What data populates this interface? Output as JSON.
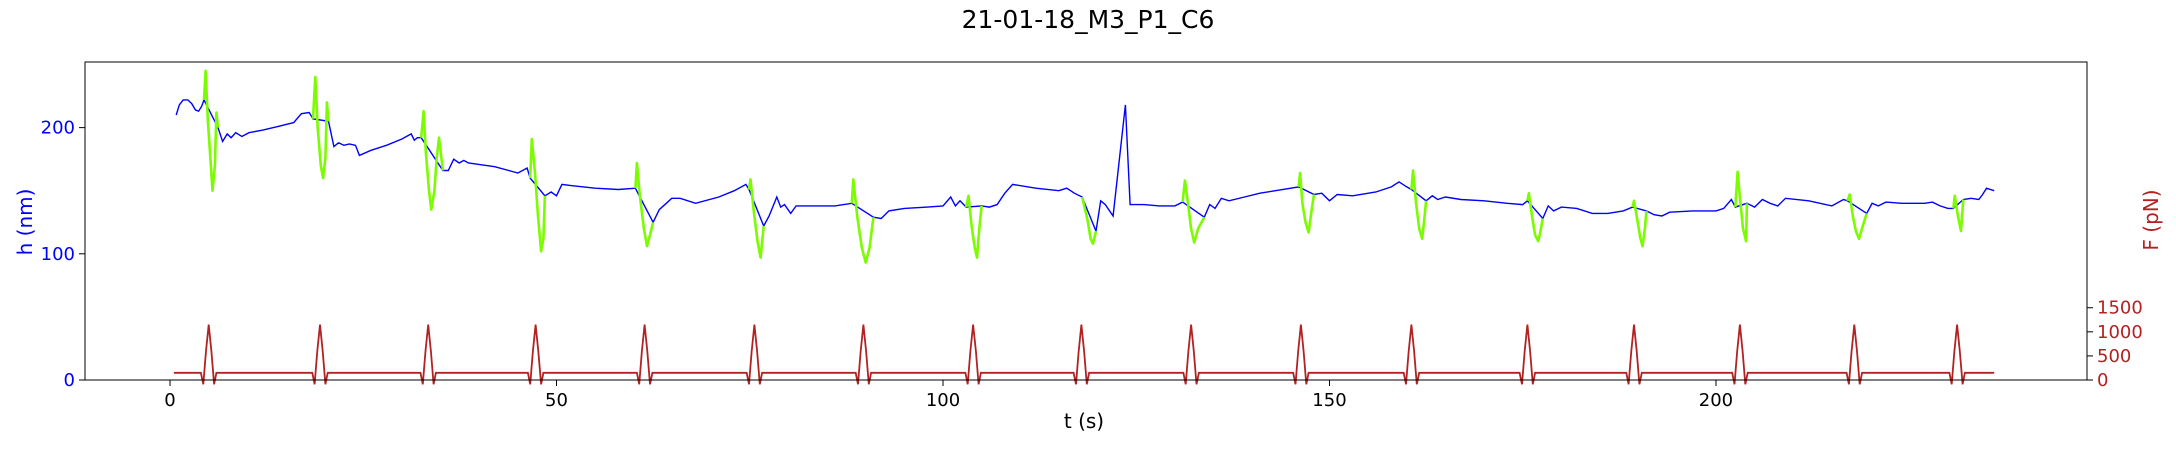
{
  "chart_data": {
    "type": "line",
    "title": "21-01-18_M3_P1_C6",
    "xlabel": "t (s)",
    "ylabel_left": "h (nm)",
    "ylabel_right": "F (pN)",
    "xlim": [
      -11,
      248
    ],
    "ylim_left": [
      0,
      252
    ],
    "ylim_right": [
      0,
      6600
    ],
    "xticks": [
      0,
      50,
      100,
      150,
      200
    ],
    "yticks_left": [
      0,
      100,
      200
    ],
    "yticks_right": [
      0,
      500,
      1000,
      1500
    ],
    "grid": false,
    "colors": {
      "height": "#0000ff",
      "height_contact": "#7cfc00",
      "force": "#b22222",
      "axis_left": "#0000ff",
      "axis_right": "#b22222"
    },
    "height_series": [
      [
        0.8,
        210
      ],
      [
        1.2,
        218
      ],
      [
        1.7,
        222
      ],
      [
        2.3,
        222
      ],
      [
        2.8,
        219
      ],
      [
        3.3,
        214
      ],
      [
        3.7,
        213
      ],
      [
        4.1,
        217
      ],
      [
        4.4,
        222
      ],
      [
        6.2,
        200
      ],
      [
        6.8,
        189
      ],
      [
        7.4,
        195
      ],
      [
        7.9,
        192
      ],
      [
        8.5,
        196
      ],
      [
        9.3,
        193
      ],
      [
        10.2,
        196
      ],
      [
        12,
        198
      ],
      [
        14,
        201
      ],
      [
        16,
        204
      ],
      [
        17,
        211
      ],
      [
        18,
        212
      ],
      [
        18.5,
        207
      ],
      [
        20.5,
        205
      ],
      [
        21.2,
        185
      ],
      [
        21.8,
        188
      ],
      [
        22.5,
        186
      ],
      [
        23.2,
        187
      ],
      [
        24,
        186
      ],
      [
        24.5,
        178
      ],
      [
        26,
        182
      ],
      [
        28,
        186
      ],
      [
        30,
        191
      ],
      [
        31.2,
        195
      ],
      [
        31.6,
        190
      ],
      [
        32,
        192
      ],
      [
        32.5,
        192
      ],
      [
        35.3,
        166
      ],
      [
        36,
        166
      ],
      [
        36.7,
        175
      ],
      [
        37.4,
        172
      ],
      [
        38,
        174
      ],
      [
        38.6,
        172
      ],
      [
        42,
        169
      ],
      [
        45,
        164
      ],
      [
        46.2,
        168
      ],
      [
        46.6,
        160
      ],
      [
        48.5,
        146
      ],
      [
        49.3,
        149
      ],
      [
        50,
        146
      ],
      [
        50.7,
        155
      ],
      [
        52,
        154
      ],
      [
        55,
        152
      ],
      [
        58,
        151
      ],
      [
        60.2,
        152
      ],
      [
        62.5,
        125
      ],
      [
        63.3,
        135
      ],
      [
        64.2,
        140
      ],
      [
        64.9,
        144
      ],
      [
        66,
        144
      ],
      [
        68,
        140
      ],
      [
        71,
        145
      ],
      [
        73,
        150
      ],
      [
        74.5,
        155
      ],
      [
        74.9,
        151
      ],
      [
        76.8,
        122
      ],
      [
        77.5,
        130
      ],
      [
        78.5,
        145
      ],
      [
        79,
        137
      ],
      [
        79.5,
        139
      ],
      [
        80.3,
        132
      ],
      [
        81,
        138
      ],
      [
        84,
        138
      ],
      [
        86,
        138
      ],
      [
        88.2,
        140
      ],
      [
        91,
        129
      ],
      [
        92,
        128
      ],
      [
        93,
        134
      ],
      [
        95,
        136
      ],
      [
        98,
        137
      ],
      [
        100,
        138
      ],
      [
        101,
        145
      ],
      [
        101.6,
        138
      ],
      [
        102.2,
        142
      ],
      [
        103,
        137
      ],
      [
        105,
        138
      ],
      [
        106,
        137
      ],
      [
        107,
        139
      ],
      [
        108,
        148
      ],
      [
        109,
        155
      ],
      [
        112,
        152
      ],
      [
        115,
        150
      ],
      [
        116,
        152
      ],
      [
        117,
        148
      ],
      [
        118,
        145
      ],
      [
        119.8,
        118
      ],
      [
        120.4,
        142
      ],
      [
        121,
        139
      ],
      [
        122,
        130
      ],
      [
        123.6,
        218
      ],
      [
        124.2,
        139
      ],
      [
        126,
        139
      ],
      [
        128,
        138
      ],
      [
        130,
        138
      ],
      [
        131,
        141
      ],
      [
        133.8,
        129
      ],
      [
        134.5,
        139
      ],
      [
        135.2,
        136
      ],
      [
        136,
        144
      ],
      [
        137,
        142
      ],
      [
        139,
        145
      ],
      [
        141,
        148
      ],
      [
        143,
        150
      ],
      [
        145,
        152
      ],
      [
        146,
        153
      ],
      [
        148,
        147
      ],
      [
        149,
        148
      ],
      [
        150,
        142
      ],
      [
        151,
        147
      ],
      [
        153,
        146
      ],
      [
        156,
        149
      ],
      [
        158,
        153
      ],
      [
        159,
        157
      ],
      [
        160,
        153
      ],
      [
        160.6,
        151
      ],
      [
        162.5,
        142
      ],
      [
        163.3,
        146
      ],
      [
        164,
        143
      ],
      [
        165,
        145
      ],
      [
        167,
        143
      ],
      [
        170,
        142
      ],
      [
        173,
        140
      ],
      [
        175,
        139
      ],
      [
        175.6,
        142
      ],
      [
        177.6,
        128
      ],
      [
        178.3,
        138
      ],
      [
        179,
        134
      ],
      [
        180,
        137
      ],
      [
        182,
        136
      ],
      [
        184,
        132
      ],
      [
        186,
        132
      ],
      [
        188,
        134
      ],
      [
        189.2,
        137
      ],
      [
        191,
        134
      ],
      [
        192,
        131
      ],
      [
        193,
        130
      ],
      [
        194,
        133
      ],
      [
        197,
        134
      ],
      [
        200,
        134
      ],
      [
        201,
        136
      ],
      [
        202,
        143
      ],
      [
        202.5,
        137
      ],
      [
        204,
        140
      ],
      [
        205,
        137
      ],
      [
        206,
        143
      ],
      [
        207,
        140
      ],
      [
        208,
        138
      ],
      [
        209,
        144
      ],
      [
        212,
        142
      ],
      [
        215,
        138
      ],
      [
        216.5,
        143
      ],
      [
        217,
        142
      ],
      [
        219.5,
        132
      ],
      [
        220.2,
        140
      ],
      [
        221,
        138
      ],
      [
        222,
        141
      ],
      [
        224,
        140
      ],
      [
        227,
        140
      ],
      [
        228,
        141
      ],
      [
        229,
        138
      ],
      [
        230,
        136
      ],
      [
        230.7,
        136
      ],
      [
        232,
        143
      ],
      [
        233,
        144
      ],
      [
        234,
        143
      ],
      [
        234.5,
        147
      ],
      [
        235,
        152
      ],
      [
        236,
        150
      ]
    ],
    "height_contact_segments": [
      [
        [
          4.4,
          222
        ],
        [
          4.6,
          245
        ],
        [
          4.9,
          205
        ],
        [
          5.2,
          178
        ],
        [
          5.5,
          150
        ],
        [
          5.8,
          170
        ],
        [
          6.0,
          212
        ],
        [
          6.2,
          200
        ]
      ],
      [
        [
          18.5,
          207
        ],
        [
          18.8,
          240
        ],
        [
          19.1,
          200
        ],
        [
          19.5,
          170
        ],
        [
          19.8,
          160
        ],
        [
          20.1,
          176
        ],
        [
          20.3,
          220
        ],
        [
          20.5,
          205
        ]
      ],
      [
        [
          32.5,
          192
        ],
        [
          32.8,
          213
        ],
        [
          33.1,
          180
        ],
        [
          33.5,
          150
        ],
        [
          33.8,
          135
        ],
        [
          34.2,
          150
        ],
        [
          34.5,
          176
        ],
        [
          34.8,
          192
        ],
        [
          35.3,
          166
        ]
      ],
      [
        [
          46.6,
          160
        ],
        [
          46.8,
          191
        ],
        [
          47.2,
          165
        ],
        [
          47.6,
          130
        ],
        [
          48.0,
          102
        ],
        [
          48.3,
          112
        ],
        [
          48.5,
          146
        ]
      ],
      [
        [
          60.2,
          152
        ],
        [
          60.4,
          172
        ],
        [
          60.8,
          145
        ],
        [
          61.3,
          120
        ],
        [
          61.7,
          106
        ],
        [
          62.1,
          115
        ],
        [
          62.5,
          125
        ]
      ],
      [
        [
          74.9,
          151
        ],
        [
          75.1,
          159
        ],
        [
          75.5,
          135
        ],
        [
          76.0,
          110
        ],
        [
          76.4,
          97
        ],
        [
          76.8,
          122
        ]
      ],
      [
        [
          88.2,
          140
        ],
        [
          88.4,
          159
        ],
        [
          88.9,
          130
        ],
        [
          89.5,
          105
        ],
        [
          90.0,
          93
        ],
        [
          90.5,
          105
        ],
        [
          91.0,
          129
        ]
      ],
      [
        [
          103,
          137
        ],
        [
          103.3,
          146
        ],
        [
          103.7,
          122
        ],
        [
          104.1,
          105
        ],
        [
          104.4,
          97
        ],
        [
          104.7,
          120
        ],
        [
          105,
          138
        ]
      ],
      [
        [
          118,
          145
        ],
        [
          118.3,
          137
        ],
        [
          118.7,
          127
        ],
        [
          119.1,
          112
        ],
        [
          119.4,
          108
        ],
        [
          119.8,
          118
        ]
      ],
      [
        [
          131,
          141
        ],
        [
          131.3,
          158
        ],
        [
          131.7,
          140
        ],
        [
          132.1,
          120
        ],
        [
          132.5,
          109
        ],
        [
          133.0,
          120
        ],
        [
          133.8,
          129
        ]
      ],
      [
        [
          146,
          153
        ],
        [
          146.2,
          164
        ],
        [
          146.5,
          140
        ],
        [
          146.9,
          125
        ],
        [
          147.3,
          117
        ],
        [
          147.7,
          135
        ],
        [
          148,
          147
        ]
      ],
      [
        [
          160.6,
          151
        ],
        [
          160.8,
          166
        ],
        [
          161.2,
          140
        ],
        [
          161.6,
          120
        ],
        [
          162.0,
          112
        ],
        [
          162.3,
          130
        ],
        [
          162.5,
          142
        ]
      ],
      [
        [
          175.6,
          142
        ],
        [
          175.8,
          148
        ],
        [
          176.2,
          130
        ],
        [
          176.6,
          115
        ],
        [
          177.0,
          110
        ],
        [
          177.3,
          118
        ],
        [
          177.6,
          128
        ]
      ],
      [
        [
          189.2,
          137
        ],
        [
          189.4,
          142
        ],
        [
          189.8,
          128
        ],
        [
          190.2,
          113
        ],
        [
          190.5,
          106
        ],
        [
          190.8,
          120
        ],
        [
          191,
          134
        ]
      ],
      [
        [
          202.5,
          137
        ],
        [
          202.8,
          165
        ],
        [
          203.1,
          145
        ],
        [
          203.5,
          120
        ],
        [
          203.9,
          110
        ],
        [
          204,
          140
        ]
      ],
      [
        [
          217,
          142
        ],
        [
          217.3,
          147
        ],
        [
          217.7,
          130
        ],
        [
          218.1,
          118
        ],
        [
          218.5,
          112
        ],
        [
          219.0,
          122
        ],
        [
          219.5,
          132
        ]
      ],
      [
        [
          230.7,
          136
        ],
        [
          230.9,
          146
        ],
        [
          231.3,
          130
        ],
        [
          231.7,
          118
        ],
        [
          232,
          143
        ]
      ]
    ],
    "force_peaks": [
      5.0,
      19.4,
      33.4,
      47.3,
      61.4,
      75.6,
      89.7,
      103.9,
      117.9,
      132.1,
      146.3,
      160.6,
      175.6,
      189.4,
      203.1,
      217.9,
      231.2
    ],
    "force_baseline": 150,
    "force_peak_value": 1150,
    "force_dip_value": -90,
    "force_range_t": [
      0.5,
      236
    ]
  }
}
